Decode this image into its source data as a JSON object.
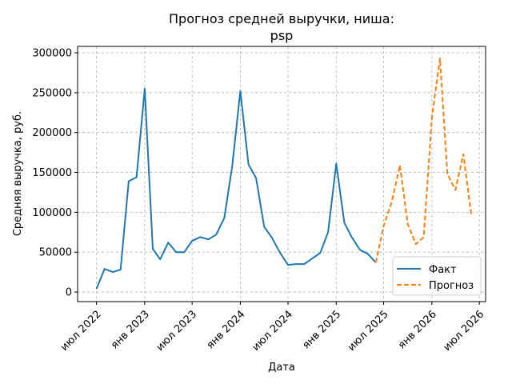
{
  "chart_data": {
    "type": "line",
    "title_line1": "Прогноз средней выручки, ниша:",
    "title_line2": "psp",
    "xlabel": "Дата",
    "ylabel": "Средняя выручка, руб.",
    "x_ticks": [
      {
        "label": "июл 2022",
        "date": "2022-07-01"
      },
      {
        "label": "янв 2023",
        "date": "2023-01-01"
      },
      {
        "label": "июл 2023",
        "date": "2023-07-01"
      },
      {
        "label": "янв 2024",
        "date": "2024-01-01"
      },
      {
        "label": "июл 2024",
        "date": "2024-07-01"
      },
      {
        "label": "янв 2025",
        "date": "2025-01-01"
      },
      {
        "label": "июл 2025",
        "date": "2025-07-01"
      },
      {
        "label": "янв 2026",
        "date": "2026-01-01"
      },
      {
        "label": "июл 2026",
        "date": "2026-07-01"
      }
    ],
    "y_ticks": [
      {
        "label": "0",
        "value": 0
      },
      {
        "label": "50000",
        "value": 50000
      },
      {
        "label": "100000",
        "value": 100000
      },
      {
        "label": "150000",
        "value": 150000
      },
      {
        "label": "200000",
        "value": 200000
      },
      {
        "label": "250000",
        "value": 250000
      },
      {
        "label": "300000",
        "value": 300000
      }
    ],
    "xlim": [
      "2022-04-20",
      "2026-07-25"
    ],
    "ylim": [
      -12000,
      308000
    ],
    "grid": true,
    "legend_position": "lower-right",
    "series": [
      {
        "name": "Факт",
        "style": "solid",
        "color": "#1f77b4",
        "points": [
          [
            "2022-07-01",
            4000
          ],
          [
            "2022-08-01",
            29000
          ],
          [
            "2022-09-01",
            25000
          ],
          [
            "2022-10-01",
            28000
          ],
          [
            "2022-11-01",
            139000
          ],
          [
            "2022-12-01",
            144000
          ],
          [
            "2023-01-01",
            255000
          ],
          [
            "2023-02-01",
            54000
          ],
          [
            "2023-03-01",
            41000
          ],
          [
            "2023-04-01",
            62000
          ],
          [
            "2023-05-01",
            50000
          ],
          [
            "2023-06-01",
            50000
          ],
          [
            "2023-07-01",
            64000
          ],
          [
            "2023-08-01",
            69000
          ],
          [
            "2023-09-01",
            66000
          ],
          [
            "2023-10-01",
            72000
          ],
          [
            "2023-11-01",
            93000
          ],
          [
            "2023-12-01",
            158000
          ],
          [
            "2024-01-01",
            252000
          ],
          [
            "2024-02-01",
            160000
          ],
          [
            "2024-03-01",
            143000
          ],
          [
            "2024-04-01",
            82000
          ],
          [
            "2024-05-01",
            68000
          ],
          [
            "2024-06-01",
            49000
          ],
          [
            "2024-07-01",
            34000
          ],
          [
            "2024-08-01",
            35000
          ],
          [
            "2024-09-01",
            35000
          ],
          [
            "2024-10-01",
            42000
          ],
          [
            "2024-11-01",
            49000
          ],
          [
            "2024-12-01",
            75000
          ],
          [
            "2025-01-01",
            161000
          ],
          [
            "2025-02-01",
            87000
          ],
          [
            "2025-03-01",
            69000
          ],
          [
            "2025-04-01",
            53000
          ],
          [
            "2025-05-01",
            48000
          ],
          [
            "2025-06-01",
            37000
          ]
        ]
      },
      {
        "name": "Прогноз",
        "style": "dashed",
        "color": "#ff7f0e",
        "points": [
          [
            "2025-06-01",
            37000
          ],
          [
            "2025-07-01",
            83000
          ],
          [
            "2025-08-01",
            113000
          ],
          [
            "2025-09-01",
            159000
          ],
          [
            "2025-10-01",
            85000
          ],
          [
            "2025-11-01",
            60000
          ],
          [
            "2025-12-01",
            69000
          ],
          [
            "2026-01-01",
            219000
          ],
          [
            "2026-02-01",
            293000
          ],
          [
            "2026-03-01",
            148000
          ],
          [
            "2026-04-01",
            128000
          ],
          [
            "2026-05-01",
            173000
          ],
          [
            "2026-06-01",
            95000
          ]
        ]
      }
    ]
  }
}
